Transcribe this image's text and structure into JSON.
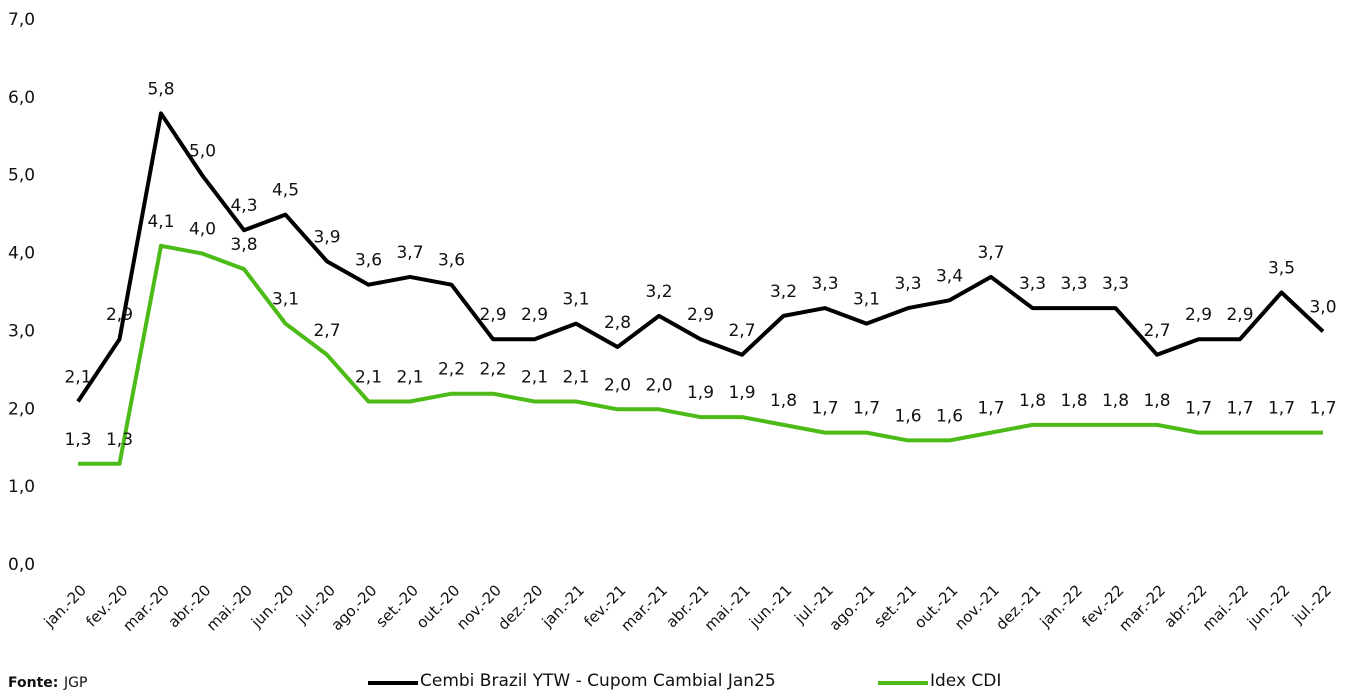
{
  "chart_data": {
    "type": "line",
    "categories": [
      "jan.-20",
      "fev.-20",
      "mar.-20",
      "abr.-20",
      "mai.-20",
      "jun.-20",
      "jul.-20",
      "ago.-20",
      "set.-20",
      "out.-20",
      "nov.-20",
      "dez.-20",
      "jan.-21",
      "fev.-21",
      "mar.-21",
      "abr.-21",
      "mai.-21",
      "jun.-21",
      "jul.-21",
      "ago.-21",
      "set.-21",
      "out.-21",
      "nov.-21",
      "dez.-21",
      "jan.-22",
      "fev.-22",
      "mar.-22",
      "abr.-22",
      "mai.-22",
      "jun.-22",
      "jul.-22"
    ],
    "series": [
      {
        "name": "Cembi Brazil YTW - Cupom Cambial Jan25",
        "color": "#000000",
        "values": [
          2.1,
          2.9,
          5.8,
          5.0,
          4.3,
          4.5,
          3.9,
          3.6,
          3.7,
          3.6,
          2.9,
          2.9,
          3.1,
          2.8,
          3.2,
          2.9,
          2.7,
          3.2,
          3.3,
          3.1,
          3.3,
          3.4,
          3.7,
          3.3,
          3.3,
          3.3,
          2.7,
          2.9,
          2.9,
          3.5,
          3.0
        ],
        "value_labels": [
          "2,1",
          "2,9",
          "5,8",
          "5,0",
          "4,3",
          "4,5",
          "3,9",
          "3,6",
          "3,7",
          "3,6",
          "2,9",
          "2,9",
          "3,1",
          "2,8",
          "3,2",
          "2,9",
          "2,7",
          "3,2",
          "3,3",
          "3,1",
          "3,3",
          "3,4",
          "3,7",
          "3,3",
          "3,3",
          "3,3",
          "2,7",
          "2,9",
          "2,9",
          "3,5",
          "3,0"
        ]
      },
      {
        "name": "Idex CDI",
        "color": "#4cbb17",
        "values": [
          1.3,
          1.3,
          4.1,
          4.0,
          3.8,
          3.1,
          2.7,
          2.1,
          2.1,
          2.2,
          2.2,
          2.1,
          2.1,
          2.0,
          2.0,
          1.9,
          1.9,
          1.8,
          1.7,
          1.7,
          1.6,
          1.6,
          1.7,
          1.8,
          1.8,
          1.8,
          1.8,
          1.7,
          1.7,
          1.7,
          1.7
        ],
        "value_labels": [
          "1,3",
          "1,3",
          "4,1",
          "4,0",
          "3,8",
          "3,1",
          "2,7",
          "2,1",
          "2,1",
          "2,2",
          "2,2",
          "2,1",
          "2,1",
          "2,0",
          "2,0",
          "1,9",
          "1,9",
          "1,8",
          "1,7",
          "1,7",
          "1,6",
          "1,6",
          "1,7",
          "1,8",
          "1,8",
          "1,8",
          "1,8",
          "1,7",
          "1,7",
          "1,7",
          "1,7"
        ]
      }
    ],
    "ylim": [
      0,
      7
    ],
    "yticks": [
      {
        "value": 0,
        "label": "0,0"
      },
      {
        "value": 1,
        "label": "1,0"
      },
      {
        "value": 2,
        "label": "2,0"
      },
      {
        "value": 3,
        "label": "3,0"
      },
      {
        "value": 4,
        "label": "4,0"
      },
      {
        "value": 5,
        "label": "5,0"
      },
      {
        "value": 6,
        "label": "6,0"
      },
      {
        "value": 7,
        "label": "7,0"
      }
    ],
    "grid": false,
    "source_label": "Fonte:",
    "source": "JGP"
  }
}
